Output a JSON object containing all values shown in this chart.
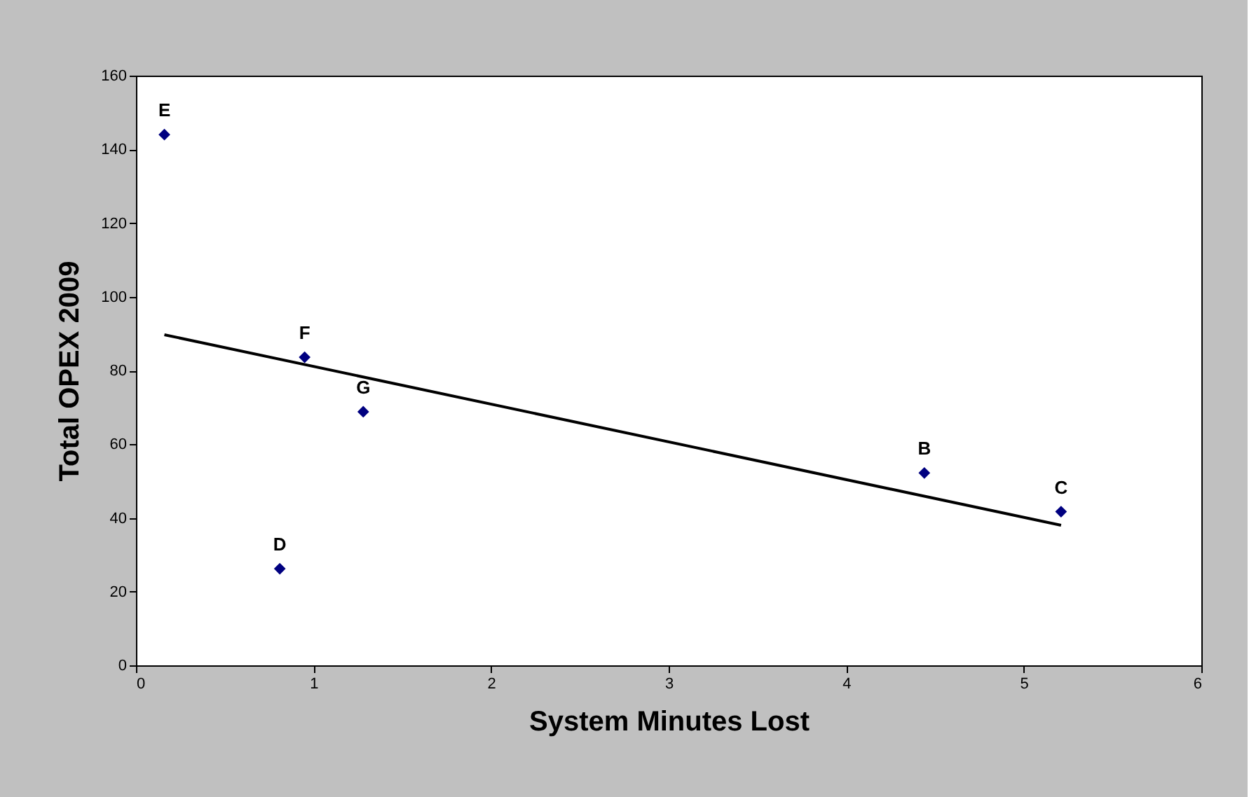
{
  "chart_data": {
    "type": "scatter",
    "xlabel": "System Minutes Lost",
    "ylabel": "Total OPEX 2009",
    "xlim": [
      0,
      6
    ],
    "xticks": [
      0,
      1,
      2,
      3,
      4,
      5,
      6
    ],
    "ylim": [
      0,
      160
    ],
    "yticks": [
      0,
      20,
      40,
      60,
      80,
      100,
      120,
      140,
      160
    ],
    "grid": false,
    "marker": "diamond",
    "series": [
      {
        "color": "#000080",
        "x": [
          0.16,
          0.95,
          1.28,
          0.81,
          4.44,
          5.21
        ],
        "values": [
          144,
          83.6,
          68.8,
          26.2,
          52.2,
          41.7
        ]
      },
      {
        "type": "line",
        "color": "#000000",
        "line_style": "solid",
        "marker": "none",
        "x": [
          0.16,
          5.21
        ],
        "values": [
          89.7,
          38.0
        ]
      }
    ],
    "annotations": [
      {
        "text": "E",
        "x": 0.16,
        "y": 144
      },
      {
        "text": "F",
        "x": 0.95,
        "y": 83.6
      },
      {
        "text": "G",
        "x": 1.28,
        "y": 68.8
      },
      {
        "text": "D",
        "x": 0.81,
        "y": 26.2
      },
      {
        "text": "B",
        "x": 4.44,
        "y": 52.2
      },
      {
        "text": "C",
        "x": 5.21,
        "y": 41.7
      }
    ]
  }
}
